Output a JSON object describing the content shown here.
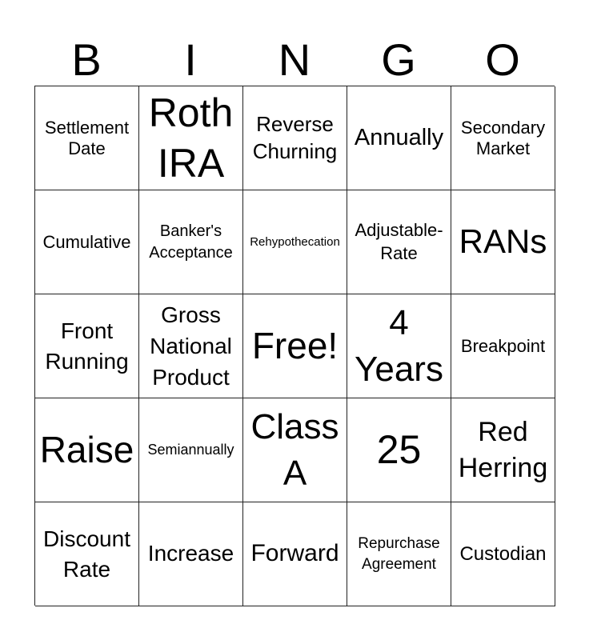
{
  "header": [
    "B",
    "I",
    "N",
    "G",
    "O"
  ],
  "cells": [
    "Settlement\nDate",
    "Roth\nIRA",
    "Reverse\nChurning",
    "Annually",
    "Secondary\nMarket",
    "Cumulative",
    "Banker's\nAcceptance",
    "Rehypothecation",
    "Adjustable-\nRate",
    "RANs",
    "Front\nRunning",
    "Gross\nNational\nProduct",
    "Free!",
    "4\nYears",
    "Breakpoint",
    "Raise",
    "Semiannually",
    "Class\nA",
    "25",
    "Red\nHerring",
    "Discount\nRate",
    "Increase",
    "Forward",
    "Repurchase\nAgreement",
    "Custodian"
  ]
}
